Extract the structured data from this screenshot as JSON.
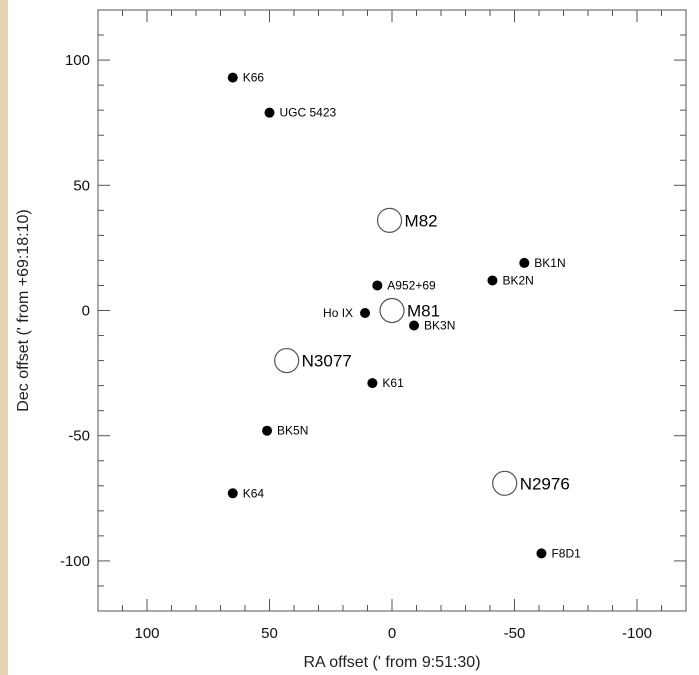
{
  "chart_data": {
    "type": "scatter",
    "xlabel": "RA offset (' from 9:51:30)",
    "ylabel": "Dec offset (' from +69:18:10)",
    "xlim": [
      120,
      -120
    ],
    "ylim": [
      -120,
      120
    ],
    "x_ticks": [
      100,
      50,
      0,
      -50,
      -100
    ],
    "x_tick_labels": [
      "100",
      "50",
      "0",
      "-50",
      "-100"
    ],
    "y_ticks": [
      100,
      50,
      0,
      -50,
      -100
    ],
    "y_tick_labels": [
      "100",
      "50",
      "0",
      "-50",
      "-100"
    ],
    "grid": false,
    "points": [
      {
        "label": "K66",
        "x": 65,
        "y": 93,
        "marker": "dot"
      },
      {
        "label": "UGC 5423",
        "x": 50,
        "y": 79,
        "marker": "dot"
      },
      {
        "label": "A952+69",
        "x": 6,
        "y": 10,
        "marker": "dot"
      },
      {
        "label": "Ho IX",
        "x": 11,
        "y": -1,
        "marker": "dot"
      },
      {
        "label": "BK3N",
        "x": -9,
        "y": -6,
        "marker": "dot"
      },
      {
        "label": "K61",
        "x": 8,
        "y": -29,
        "marker": "dot"
      },
      {
        "label": "BK5N",
        "x": 51,
        "y": -48,
        "marker": "dot"
      },
      {
        "label": "K64",
        "x": 65,
        "y": -73,
        "marker": "dot"
      },
      {
        "label": "BK1N",
        "x": -54,
        "y": 19,
        "marker": "dot"
      },
      {
        "label": "BK2N",
        "x": -41,
        "y": 12,
        "marker": "dot"
      },
      {
        "label": "F8D1",
        "x": -61,
        "y": -97,
        "marker": "dot"
      },
      {
        "label": "M82",
        "x": 1,
        "y": 36,
        "marker": "ring"
      },
      {
        "label": "M81",
        "x": 0,
        "y": 0,
        "marker": "ring"
      },
      {
        "label": "N3077",
        "x": 43,
        "y": -20,
        "marker": "ring"
      },
      {
        "label": "N2976",
        "x": -46,
        "y": -69,
        "marker": "ring"
      }
    ]
  }
}
